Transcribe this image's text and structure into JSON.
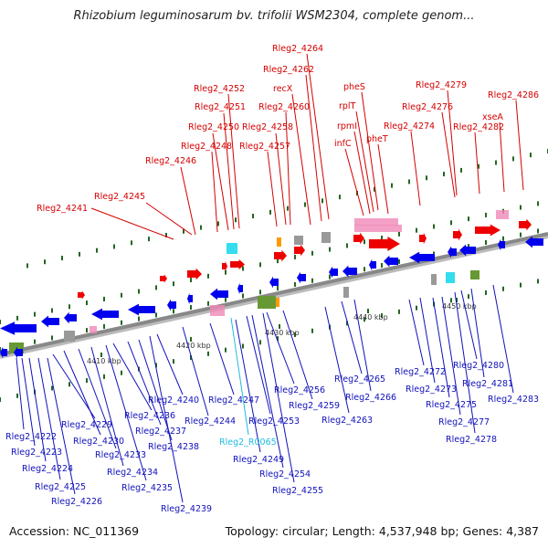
{
  "title": "Rhizobium leguminosarum bv. trifolii WSM2304, complete genom...",
  "footer": {
    "accession": "Accession: NC_011369",
    "summary": "Topology: circular; Length: 4,537,948 bp; Genes: 4,387"
  },
  "colors": {
    "forward_label": "#d40000",
    "reverse_label": "#1111bb",
    "rna_label": "#22bbdd",
    "forward_feature": "#ee0000",
    "reverse_feature": "#0000ee",
    "backbone": "#888888",
    "tick": "#226622"
  },
  "scale": {
    "ticks": [
      "4410 kbp",
      "4420 kbp",
      "4430 kbp",
      "4440 kbp",
      "4450 kbp"
    ]
  },
  "forward_labels": [
    {
      "text": "Rleg2_4241"
    },
    {
      "text": "Rleg2_4245"
    },
    {
      "text": "Rleg2_4246"
    },
    {
      "text": "Rleg2_4248"
    },
    {
      "text": "Rleg2_4250"
    },
    {
      "text": "Rleg2_4251"
    },
    {
      "text": "Rleg2_4252"
    },
    {
      "text": "Rleg2_4257"
    },
    {
      "text": "Rleg2_4258"
    },
    {
      "text": "Rleg2_4260"
    },
    {
      "text": "recX"
    },
    {
      "text": "Rleg2_4262"
    },
    {
      "text": "Rleg2_4264"
    },
    {
      "text": "infC"
    },
    {
      "text": "rpmI"
    },
    {
      "text": "rplT"
    },
    {
      "text": "pheS"
    },
    {
      "text": "pheT"
    },
    {
      "text": "Rleg2_4274"
    },
    {
      "text": "Rleg2_4276"
    },
    {
      "text": "Rleg2_4279"
    },
    {
      "text": "Rleg2_4282"
    },
    {
      "text": "xseA"
    },
    {
      "text": "Rleg2_4286"
    }
  ],
  "reverse_labels": [
    {
      "text": "Rleg2_4222"
    },
    {
      "text": "Rleg2_4223"
    },
    {
      "text": "Rleg2_4224"
    },
    {
      "text": "Rleg2_4225"
    },
    {
      "text": "Rleg2_4226"
    },
    {
      "text": "Rleg2_4229"
    },
    {
      "text": "Rleg2_4230"
    },
    {
      "text": "Rleg2_4233"
    },
    {
      "text": "Rleg2_4234"
    },
    {
      "text": "Rleg2_4235"
    },
    {
      "text": "Rleg2_4236"
    },
    {
      "text": "Rleg2_4237"
    },
    {
      "text": "Rleg2_4238"
    },
    {
      "text": "Rleg2_4239"
    },
    {
      "text": "Rleg2_4240"
    },
    {
      "text": "Rleg2_4244"
    },
    {
      "text": "Rleg2_4247"
    },
    {
      "text": "Rleg2_4249"
    },
    {
      "text": "Rleg2_4253"
    },
    {
      "text": "Rleg2_4254"
    },
    {
      "text": "Rleg2_4255"
    },
    {
      "text": "Rleg2_4256"
    },
    {
      "text": "Rleg2_4259"
    },
    {
      "text": "Rleg2_4263"
    },
    {
      "text": "Rleg2_4265"
    },
    {
      "text": "Rleg2_4266"
    },
    {
      "text": "Rleg2_4272"
    },
    {
      "text": "Rleg2_4273"
    },
    {
      "text": "Rleg2_4275"
    },
    {
      "text": "Rleg2_4277"
    },
    {
      "text": "Rleg2_4278"
    },
    {
      "text": "Rleg2_4280"
    },
    {
      "text": "Rleg2_4281"
    },
    {
      "text": "Rleg2_4283"
    }
  ],
  "rna_labels": [
    {
      "text": "Rleg2_R0065"
    }
  ]
}
